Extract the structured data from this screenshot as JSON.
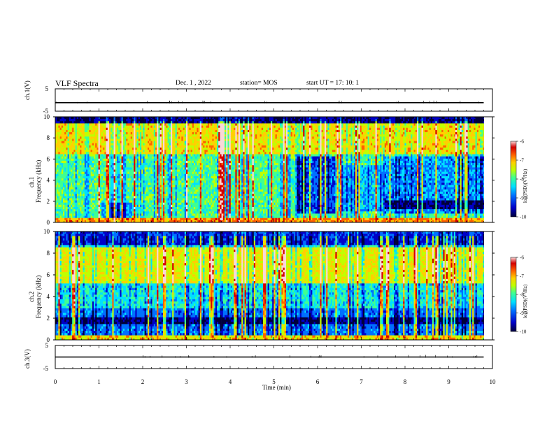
{
  "header": {
    "title": "VLF Spectra",
    "date": "Dec. 1 , 2022",
    "station": "station= MOS",
    "start_ut": "start UT = 17: 10: 1"
  },
  "colors": {
    "palette": [
      "#00003a",
      "#0000c8",
      "#0070ff",
      "#00e0ff",
      "#40ff90",
      "#c0ff00",
      "#ffd000",
      "#ff6000",
      "#d40000",
      "#f8d8d8"
    ],
    "line": "#000000"
  },
  "chart_data": [
    {
      "type": "line",
      "name_label": "ch.1(V)",
      "ylabel": "ch.1(V)",
      "ylim": [
        -5,
        5
      ],
      "yticks": [
        "5",
        "-5"
      ],
      "x": [
        0,
        9.8
      ],
      "values": [
        -1.2,
        -1.2
      ],
      "xlim": [
        0,
        10
      ]
    },
    {
      "type": "heatmap",
      "ylabel_channel": "ch.1",
      "ylabel": "Frequency (kHz)",
      "ylim": [
        0,
        10
      ],
      "yticks": [
        "0",
        "2",
        "4",
        "6",
        "8",
        "10"
      ],
      "xlim": [
        0,
        10
      ],
      "xlabel": "Time (min)",
      "colorbar": {
        "ticks": [
          "-6",
          "-7",
          "-8",
          "-9",
          "-10"
        ],
        "label": "log(PSD)(V²/Hz)",
        "range": [
          -10,
          -6
        ]
      },
      "bands": [
        {
          "t": [
            0,
            1.1
          ],
          "f": [
            0.4,
            1.7
          ],
          "level": -8.3
        },
        {
          "t": [
            1.1,
            1.7
          ],
          "f": [
            0.4,
            1.7
          ],
          "level": -9.1
        },
        {
          "t": [
            5.5,
            6.4
          ],
          "f": [
            1.0,
            6.2
          ],
          "level": -9.4
        },
        {
          "t": [
            7.5,
            9.8
          ],
          "f": [
            1.2,
            2.0
          ],
          "level": -9.6
        }
      ]
    },
    {
      "type": "heatmap",
      "ylabel_channel": "ch.2",
      "ylabel": "Frequency (kHz)",
      "ylim": [
        0,
        10
      ],
      "yticks": [
        "0",
        "2",
        "4",
        "6",
        "8",
        "10"
      ],
      "xlim": [
        0,
        10
      ],
      "colorbar": {
        "ticks": [
          "-6",
          "-7",
          "-8",
          "-9",
          "-10"
        ],
        "label": "log(PSD)(V²/Hz)",
        "range": [
          -10,
          -6
        ]
      }
    },
    {
      "type": "line",
      "ylabel": "ch.3(V)",
      "ylim": [
        -5,
        5
      ],
      "yticks": [
        "5",
        "-5"
      ],
      "x": [
        0,
        9.8
      ],
      "values": [
        0,
        0
      ],
      "xlim": [
        0,
        10
      ],
      "xticks": [
        "0",
        "1",
        "2",
        "3",
        "4",
        "5",
        "6",
        "7",
        "8",
        "9",
        "10"
      ],
      "xlabel": "Time (min)"
    }
  ]
}
